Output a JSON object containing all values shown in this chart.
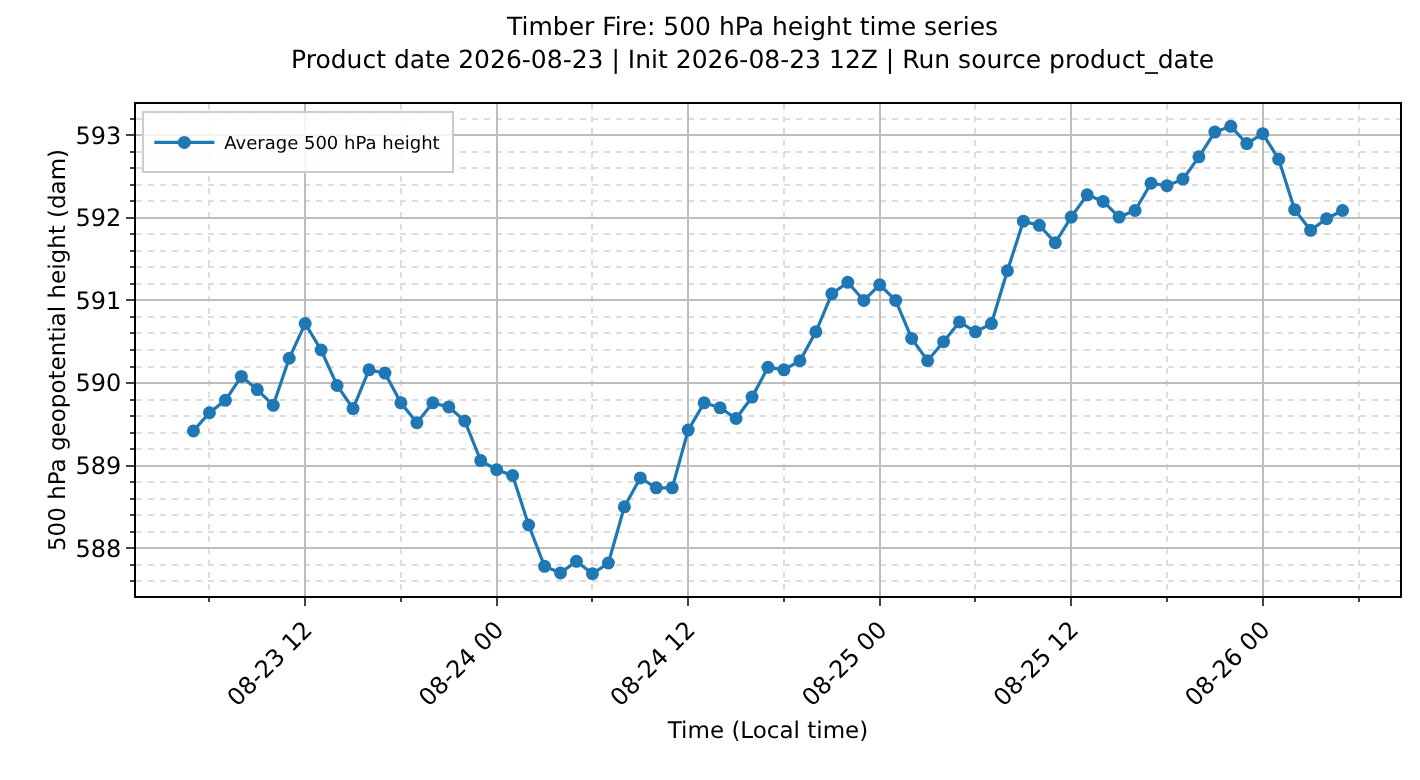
{
  "chart_data": {
    "type": "line",
    "title": "Timber Fire: 500 hPa height time series",
    "subtitle": "Product date 2026-08-23 | Init 2026-08-23 12Z | Run source product_date",
    "xlabel": "Time (Local time)",
    "ylabel": "500 hPa geopotential height (dam)",
    "x": [
      "2026-08-23T05:00",
      "2026-08-23T06:00",
      "2026-08-23T07:00",
      "2026-08-23T08:00",
      "2026-08-23T09:00",
      "2026-08-23T10:00",
      "2026-08-23T11:00",
      "2026-08-23T12:00",
      "2026-08-23T13:00",
      "2026-08-23T14:00",
      "2026-08-23T15:00",
      "2026-08-23T16:00",
      "2026-08-23T17:00",
      "2026-08-23T18:00",
      "2026-08-23T19:00",
      "2026-08-23T20:00",
      "2026-08-23T21:00",
      "2026-08-23T22:00",
      "2026-08-23T23:00",
      "2026-08-24T00:00",
      "2026-08-24T01:00",
      "2026-08-24T02:00",
      "2026-08-24T03:00",
      "2026-08-24T04:00",
      "2026-08-24T05:00",
      "2026-08-24T06:00",
      "2026-08-24T07:00",
      "2026-08-24T08:00",
      "2026-08-24T09:00",
      "2026-08-24T10:00",
      "2026-08-24T11:00",
      "2026-08-24T12:00",
      "2026-08-24T13:00",
      "2026-08-24T14:00",
      "2026-08-24T15:00",
      "2026-08-24T16:00",
      "2026-08-24T17:00",
      "2026-08-24T18:00",
      "2026-08-24T19:00",
      "2026-08-24T20:00",
      "2026-08-24T21:00",
      "2026-08-24T22:00",
      "2026-08-24T23:00",
      "2026-08-25T00:00",
      "2026-08-25T01:00",
      "2026-08-25T02:00",
      "2026-08-25T03:00",
      "2026-08-25T04:00",
      "2026-08-25T05:00",
      "2026-08-25T06:00",
      "2026-08-25T07:00",
      "2026-08-25T08:00",
      "2026-08-25T09:00",
      "2026-08-25T10:00",
      "2026-08-25T11:00",
      "2026-08-25T12:00",
      "2026-08-25T13:00",
      "2026-08-25T14:00",
      "2026-08-25T15:00",
      "2026-08-25T16:00",
      "2026-08-25T17:00",
      "2026-08-25T18:00",
      "2026-08-25T19:00",
      "2026-08-25T20:00",
      "2026-08-25T21:00",
      "2026-08-25T22:00",
      "2026-08-25T23:00",
      "2026-08-26T00:00",
      "2026-08-26T01:00",
      "2026-08-26T02:00",
      "2026-08-26T03:00",
      "2026-08-26T04:00",
      "2026-08-26T05:00"
    ],
    "series": [
      {
        "name": "Average 500 hPa height",
        "color": "#1f77b4",
        "values": [
          589.42,
          589.64,
          589.79,
          590.08,
          589.92,
          589.73,
          590.3,
          590.72,
          590.4,
          589.97,
          589.69,
          590.16,
          590.12,
          589.76,
          589.52,
          589.76,
          589.71,
          589.54,
          589.06,
          588.95,
          588.88,
          588.28,
          587.78,
          587.7,
          587.84,
          587.69,
          587.82,
          588.5,
          588.85,
          588.73,
          588.73,
          589.43,
          589.76,
          589.7,
          589.57,
          589.83,
          590.19,
          590.16,
          590.27,
          590.62,
          591.08,
          591.22,
          591.0,
          591.19,
          591.0,
          590.54,
          590.27,
          590.5,
          590.74,
          590.62,
          590.72,
          591.36,
          591.96,
          591.91,
          591.7,
          592.01,
          592.28,
          592.2,
          592.01,
          592.09,
          592.42,
          592.39,
          592.47,
          592.74,
          593.04,
          593.11,
          592.9,
          593.02,
          592.71,
          592.1,
          591.85,
          591.99,
          592.09
        ]
      }
    ],
    "xlim": [
      "2026-08-23T01:24",
      "2026-08-26T08:36"
    ],
    "xticks": [
      {
        "value": "2026-08-23T12:00",
        "label": "08-23 12"
      },
      {
        "value": "2026-08-24T00:00",
        "label": "08-24 00"
      },
      {
        "value": "2026-08-24T12:00",
        "label": "08-24 12"
      },
      {
        "value": "2026-08-25T00:00",
        "label": "08-25 00"
      },
      {
        "value": "2026-08-25T12:00",
        "label": "08-25 12"
      },
      {
        "value": "2026-08-26T00:00",
        "label": "08-26 00"
      }
    ],
    "ylim": [
      587.42,
      593.38
    ],
    "yticks": [
      588,
      589,
      590,
      591,
      592,
      593
    ],
    "grid": true,
    "legend": "top left",
    "marker": "circle",
    "line_style": "solid"
  }
}
